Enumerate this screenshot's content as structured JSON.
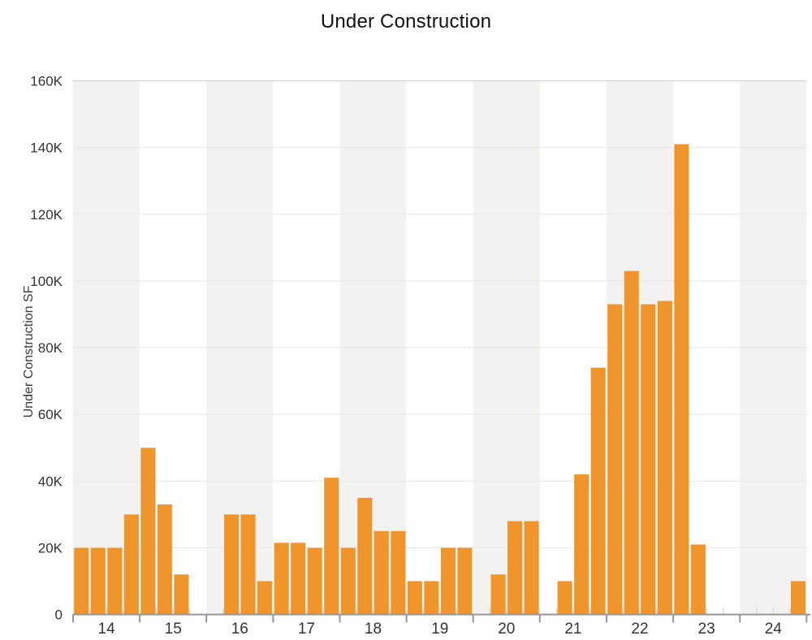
{
  "title": "Under Construction",
  "y_axis": {
    "title": "Under Construction SF",
    "tick_labels": [
      "0",
      "20K",
      "40K",
      "60K",
      "80K",
      "100K",
      "120K",
      "140K",
      "160K"
    ],
    "max": 160000,
    "tick_interval": 20000
  },
  "x_axis": {
    "year_labels": [
      "14",
      "15",
      "16",
      "17",
      "18",
      "19",
      "20",
      "21",
      "22",
      "23",
      "24"
    ]
  },
  "colors": {
    "bar": "#F0942C",
    "band": "#F2F2F1",
    "grid": "#E6E6E6",
    "grid_top": "#CFCFCF",
    "axis": "#969696",
    "minor_tick": "#D9D9D9",
    "label": "#333333",
    "title": "#111111"
  },
  "chart_data": {
    "type": "bar",
    "title": "Under Construction",
    "xlabel": "",
    "ylabel": "Under Construction SF",
    "ylim": [
      0,
      160000
    ],
    "y_tick_interval": 20000,
    "grid": true,
    "legend": false,
    "categories": [
      "14",
      "15",
      "16",
      "17",
      "18",
      "19",
      "20",
      "21",
      "22",
      "23",
      "24"
    ],
    "quarters_per_category": 4,
    "shaded_band_categories": [
      "14",
      "16",
      "18",
      "20",
      "22",
      "24"
    ],
    "series": [
      {
        "name": "Under Construction SF",
        "values_sf_by_quarter": [
          [
            20000,
            20000,
            20000,
            30000
          ],
          [
            50000,
            33000,
            12000,
            null
          ],
          [
            null,
            30000,
            30000,
            10000
          ],
          [
            21500,
            21500,
            20000,
            41000
          ],
          [
            20000,
            35000,
            25000,
            25000
          ],
          [
            10000,
            10000,
            20000,
            20000
          ],
          [
            null,
            12000,
            28000,
            28000
          ],
          [
            null,
            10000,
            42000,
            74000
          ],
          [
            93000,
            103000,
            93000,
            94000
          ],
          [
            141000,
            21000,
            null,
            null
          ],
          [
            null,
            null,
            null,
            10000
          ]
        ]
      }
    ]
  }
}
